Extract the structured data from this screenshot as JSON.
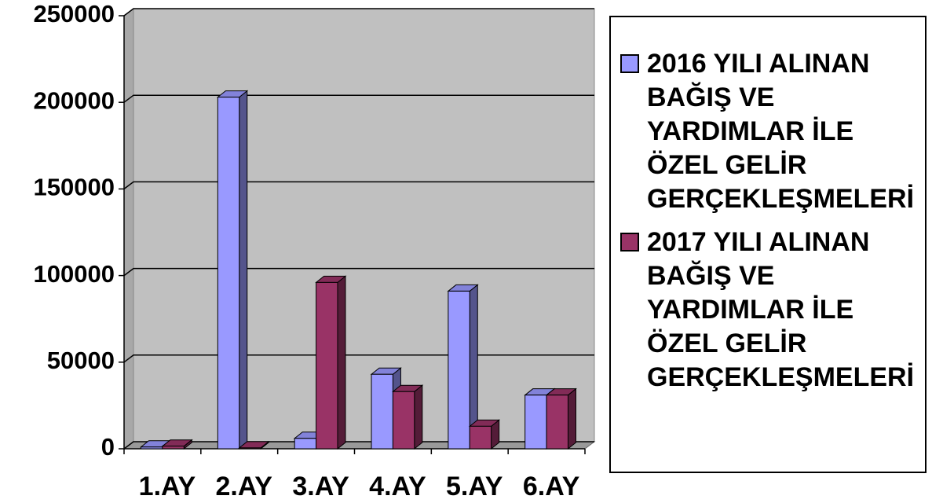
{
  "chart_data": {
    "type": "bar3d",
    "categories": [
      "1.AY",
      "2.AY",
      "3.AY",
      "4.AY",
      "5.AY",
      "6.AY"
    ],
    "series": [
      {
        "name": "2016 YILI ALINAN BAĞIŞ VE YARDIMLAR İLE ÖZEL GELİR GERÇEKLEŞMELERİ",
        "color": "#9999ff",
        "values": [
          1000,
          203000,
          6000,
          43000,
          91000,
          31000
        ]
      },
      {
        "name": "2017 YILI ALINAN BAĞIŞ VE YARDIMLAR İLE ÖZEL GELİR GERÇEKLEŞMELERİ",
        "color": "#993366",
        "values": [
          1500,
          500,
          96000,
          33000,
          13000,
          31000
        ]
      }
    ],
    "ylim": [
      0,
      250000
    ],
    "yticks": [
      0,
      50000,
      100000,
      150000,
      200000,
      250000
    ],
    "grid": true,
    "legend": "right"
  }
}
